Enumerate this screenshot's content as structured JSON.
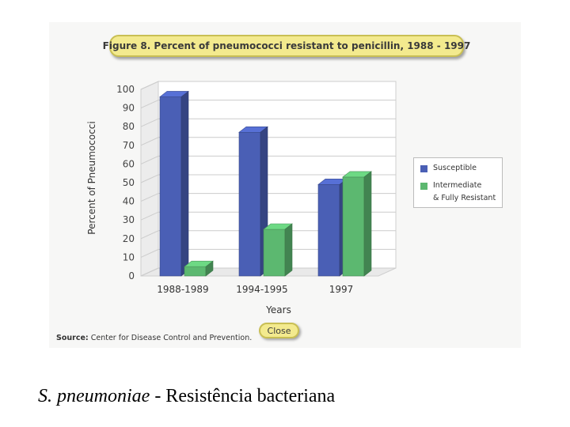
{
  "figure": {
    "title": "Figure 8.  Percent of pneumococci resistant to penicillin, 1988 - 1997",
    "source_label": "Source:",
    "source_text": "Center for Disease Control and Prevention.",
    "close_label": "Close"
  },
  "caption": {
    "species": "S. pneumoniae",
    "rest": " - Resistência bacteriana"
  },
  "chart_data": {
    "type": "bar",
    "title": "Percent of pneumococci resistant to penicillin, 1988 - 1997",
    "xlabel": "Years",
    "ylabel": "Percent of Pneumococci",
    "ylim": [
      0,
      100
    ],
    "yticks": [
      0,
      10,
      20,
      30,
      40,
      50,
      60,
      70,
      80,
      90,
      100
    ],
    "categories": [
      "1988-1989",
      "1994-1995",
      "1997"
    ],
    "series": [
      {
        "name": "Susceptible",
        "values": [
          96,
          77,
          49
        ],
        "color": "#4a5fb5"
      },
      {
        "name": "Intermediate & Fully Resistant",
        "values": [
          5,
          25,
          53
        ],
        "color": "#5cb870"
      }
    ],
    "legend_position": "right",
    "grid": true
  },
  "legend": {
    "items": [
      "Susceptible",
      "Intermediate",
      "& Fully Resistant"
    ]
  }
}
